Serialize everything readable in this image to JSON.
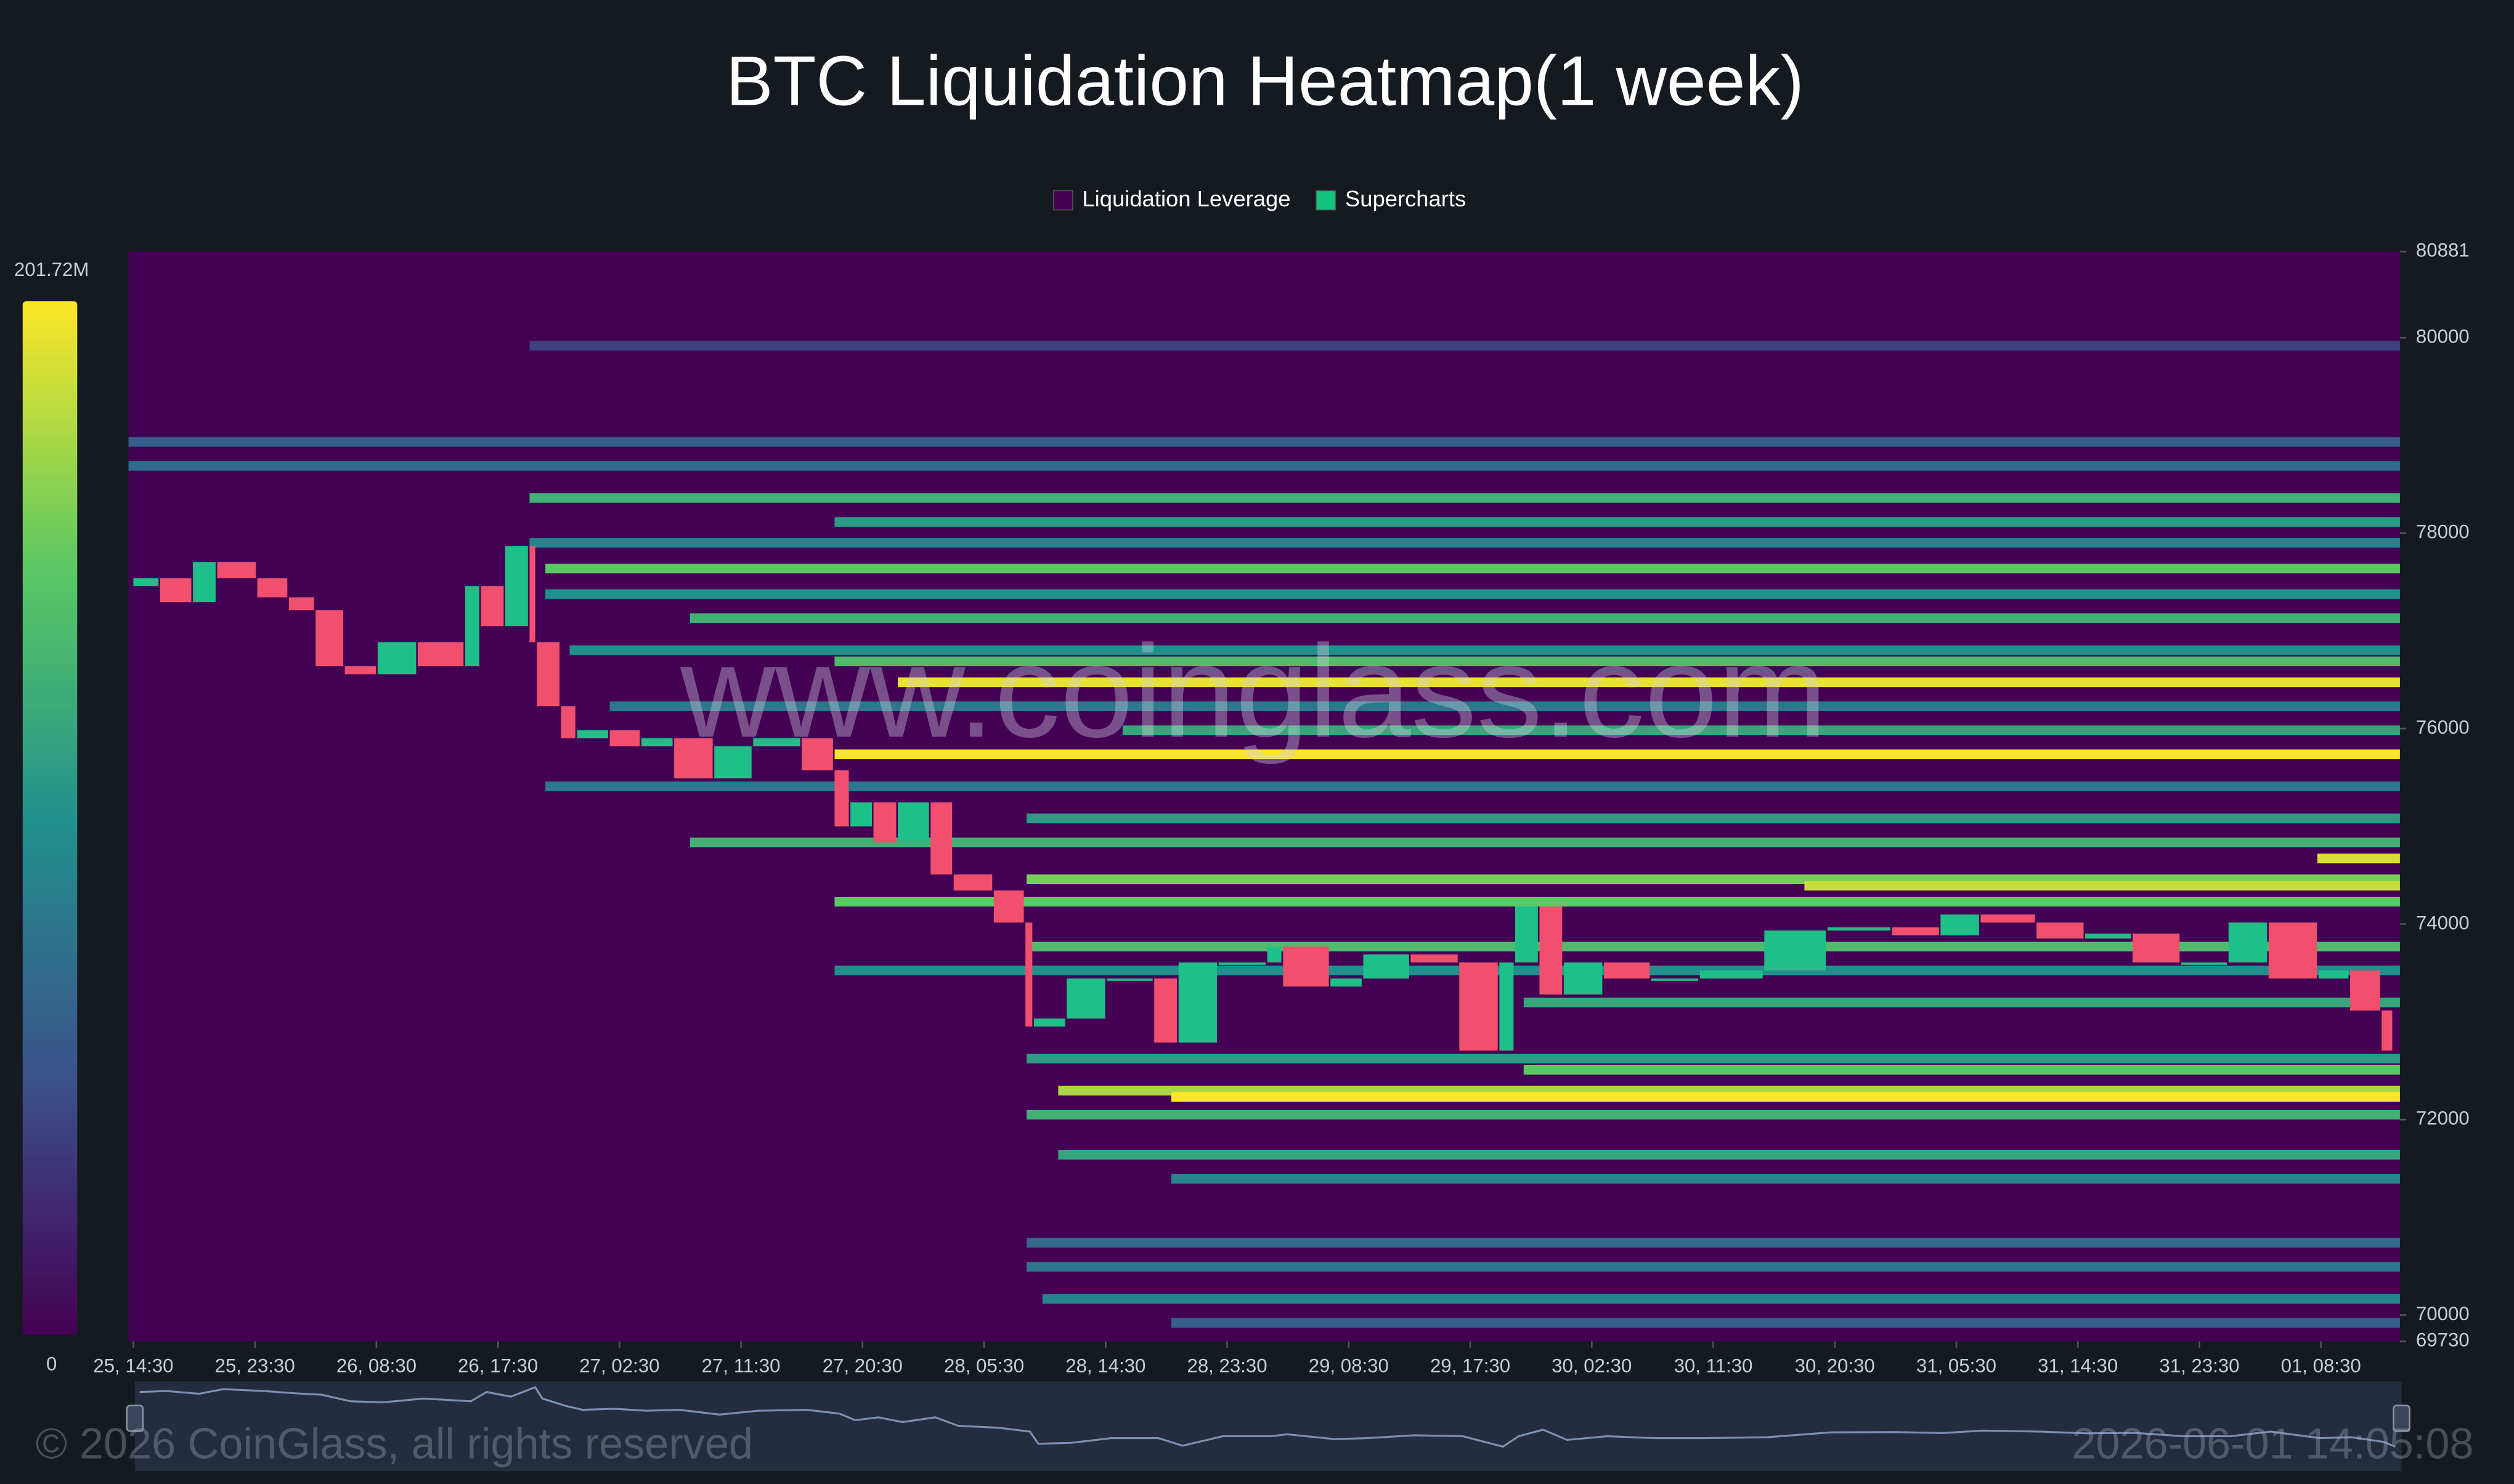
{
  "chart_data": {
    "type": "heatmap",
    "title": "BTC Liquidation Heatmap(1 week)",
    "legend": [
      {
        "name": "Liquidation Leverage",
        "color": "#440154"
      },
      {
        "name": "Supercharts",
        "color": "#12c47f"
      }
    ],
    "colorbar": {
      "colors": [
        "#440154",
        "#3b528b",
        "#21918c",
        "#5ec962",
        "#fde725"
      ],
      "ticks": [
        0,
        {
          "value": 201.72,
          "label": "201.72M"
        }
      ]
    },
    "ylim": [
      69730,
      80881
    ],
    "yticks": [
      80881,
      80000,
      78000,
      76000,
      74000,
      72000,
      70000,
      69730
    ],
    "xlim": [
      -0.04,
      18.65
    ],
    "xticks": [
      {
        "value": 0,
        "label": "25, 14:30"
      },
      {
        "value": 1,
        "label": "25, 23:30"
      },
      {
        "value": 2,
        "label": "26, 08:30"
      },
      {
        "value": 3,
        "label": "26, 17:30"
      },
      {
        "value": 4,
        "label": "27, 02:30"
      },
      {
        "value": 5,
        "label": "27, 11:30"
      },
      {
        "value": 6,
        "label": "27, 20:30"
      },
      {
        "value": 7,
        "label": "28, 05:30"
      },
      {
        "value": 8,
        "label": "28, 14:30"
      },
      {
        "value": 9,
        "label": "28, 23:30"
      },
      {
        "value": 10,
        "label": "29, 08:30"
      },
      {
        "value": 11,
        "label": "29, 17:30"
      },
      {
        "value": 12,
        "label": "30, 02:30"
      },
      {
        "value": 13,
        "label": "30, 11:30"
      },
      {
        "value": 14,
        "label": "30, 20:30"
      },
      {
        "value": 15,
        "label": "31, 05:30"
      },
      {
        "value": 16,
        "label": "31, 14:30"
      },
      {
        "value": 17,
        "label": "31, 23:30"
      },
      {
        "value": 18,
        "label": "01, 08:30"
      }
    ],
    "bands": [
      {
        "price": 79918,
        "start": 3.26,
        "value": 40
      },
      {
        "price": 78934,
        "start": -0.04,
        "value": 60
      },
      {
        "price": 78689,
        "start": -0.04,
        "value": 70
      },
      {
        "price": 78361,
        "start": 3.26,
        "value": 130
      },
      {
        "price": 78115,
        "start": 5.77,
        "value": 110
      },
      {
        "price": 77902,
        "start": 3.26,
        "value": 90
      },
      {
        "price": 77639,
        "start": 3.39,
        "value": 150
      },
      {
        "price": 77377,
        "start": 3.39,
        "value": 100
      },
      {
        "price": 77131,
        "start": 4.58,
        "value": 130
      },
      {
        "price": 76803,
        "start": 3.59,
        "value": 100
      },
      {
        "price": 76689,
        "start": 5.77,
        "value": 140
      },
      {
        "price": 76475,
        "start": 6.29,
        "value": 195
      },
      {
        "price": 76230,
        "start": 3.92,
        "value": 80
      },
      {
        "price": 75984,
        "start": 8.14,
        "value": 120
      },
      {
        "price": 75738,
        "start": 5.77,
        "value": 200
      },
      {
        "price": 75410,
        "start": 3.39,
        "value": 80
      },
      {
        "price": 75082,
        "start": 7.35,
        "value": 110
      },
      {
        "price": 74836,
        "start": 4.58,
        "value": 130
      },
      {
        "price": 74672,
        "start": 17.97,
        "value": 190
      },
      {
        "price": 74459,
        "start": 7.35,
        "value": 160
      },
      {
        "price": 74393,
        "start": 13.75,
        "value": 185
      },
      {
        "price": 74229,
        "start": 5.77,
        "value": 150
      },
      {
        "price": 73770,
        "start": 7.35,
        "value": 140
      },
      {
        "price": 73525,
        "start": 5.77,
        "value": 100
      },
      {
        "price": 73197,
        "start": 11.44,
        "value": 120
      },
      {
        "price": 72623,
        "start": 7.35,
        "value": 110
      },
      {
        "price": 72508,
        "start": 11.44,
        "value": 150
      },
      {
        "price": 72295,
        "start": 7.61,
        "value": 175
      },
      {
        "price": 72230,
        "start": 8.54,
        "value": 200
      },
      {
        "price": 72049,
        "start": 7.35,
        "value": 130
      },
      {
        "price": 71639,
        "start": 7.61,
        "value": 120
      },
      {
        "price": 71393,
        "start": 8.54,
        "value": 90
      },
      {
        "price": 70738,
        "start": 7.35,
        "value": 70
      },
      {
        "price": 70492,
        "start": 7.35,
        "value": 80
      },
      {
        "price": 70164,
        "start": 7.48,
        "value": 90
      },
      {
        "price": 69918,
        "start": 8.54,
        "value": 60
      }
    ],
    "price": {
      "up_color": "#1fbf8a",
      "down_color": "#f0506e",
      "x": [
        0,
        0.22,
        0.49,
        0.69,
        1.02,
        1.28,
        1.5,
        1.74,
        2.01,
        2.34,
        2.73,
        2.86,
        3.06,
        3.26,
        3.32,
        3.52,
        3.65,
        3.92,
        4.18,
        4.45,
        4.78,
        5.1,
        5.5,
        5.77,
        5.9,
        6.09,
        6.29,
        6.56,
        6.75,
        7.08,
        7.34,
        7.41,
        7.68,
        8.01,
        8.4,
        8.6,
        8.93,
        9.33,
        9.46,
        9.85,
        10.12,
        10.51,
        10.91,
        11.24,
        11.37,
        11.57,
        11.77,
        12.1,
        12.49,
        12.89,
        13.42,
        13.94,
        14.47,
        14.87,
        15.2,
        15.66,
        16.06,
        16.45,
        16.85,
        17.24,
        17.57,
        17.98,
        18.24,
        18.5,
        18.6
      ],
      "values": [
        77459,
        77540,
        77295,
        77705,
        77540,
        77344,
        77213,
        76640,
        76557,
        76885,
        76640,
        77459,
        77049,
        77869,
        76885,
        76230,
        75902,
        75984,
        75820,
        75902,
        75492,
        75820,
        75902,
        75574,
        75000,
        75246,
        74836,
        75246,
        74508,
        74344,
        74016,
        72951,
        73033,
        73443,
        73443,
        72787,
        73607,
        73607,
        73770,
        73361,
        73443,
        73689,
        73607,
        72705,
        73607,
        74180,
        73279,
        73607,
        73443,
        73443,
        73525,
        73934,
        73967,
        73885,
        74098,
        74016,
        73852,
        73902,
        73607,
        73607,
        74016,
        73443,
        73525,
        73115,
        72705
      ]
    },
    "watermark": "www.coinglass.com",
    "copyright": "© 2026 CoinGlass, all rights reserved",
    "timestamp": "2026-06-01 14:05:08"
  }
}
